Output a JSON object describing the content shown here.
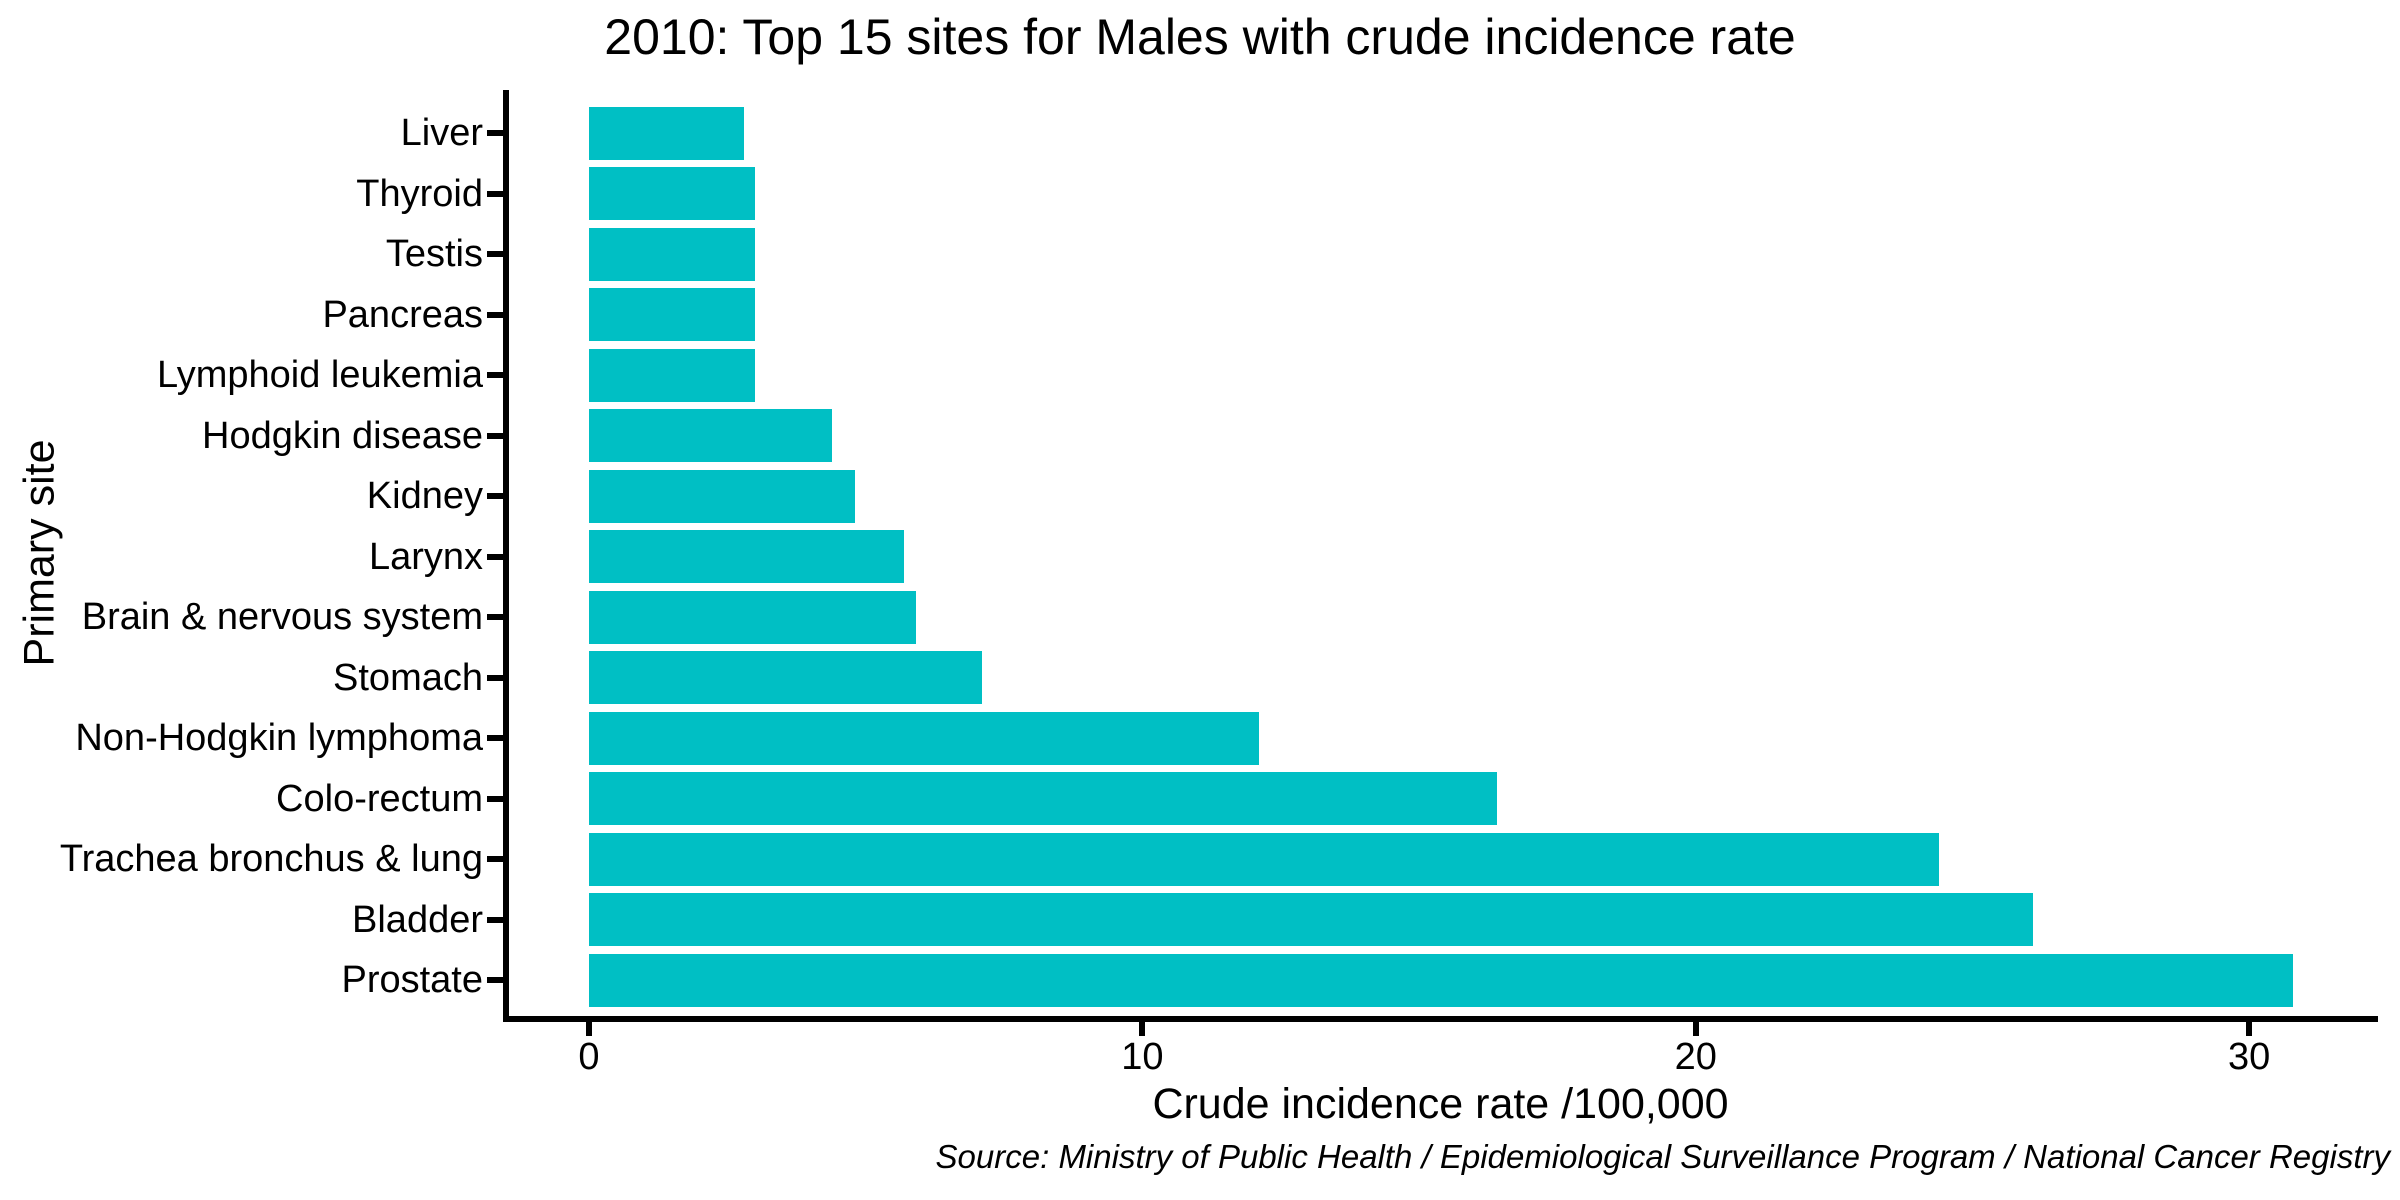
{
  "chart_data": {
    "type": "bar",
    "orientation": "horizontal",
    "title": "2010: Top 15 sites for Males with crude incidence rate",
    "xlabel": "Crude incidence rate /100,000",
    "ylabel": "Primary site",
    "caption": "Source: Ministry of Public Health / Epidemiological Surveillance Program / National Cancer Registry",
    "categories": [
      "Liver",
      "Thyroid",
      "Testis",
      "Pancreas",
      "Lymphoid leukemia",
      "Hodgkin disease",
      "Kidney",
      "Larynx",
      "Brain & nervous system",
      "Stomach",
      "Non-Hodgkin lymphoma",
      "Colo-rectum",
      "Trachea bronchus & lung",
      "Bladder",
      "Prostate"
    ],
    "values": [
      2.8,
      3.0,
      3.0,
      3.0,
      3.0,
      4.4,
      4.8,
      5.7,
      5.9,
      7.1,
      12.1,
      16.4,
      24.4,
      26.1,
      30.8
    ],
    "x_ticks": [
      0,
      10,
      20,
      30
    ],
    "xlim": [
      0,
      30.8
    ],
    "bar_color": "#00BFC4",
    "axis_color": "#000000",
    "grid": "off",
    "legend": "none"
  }
}
